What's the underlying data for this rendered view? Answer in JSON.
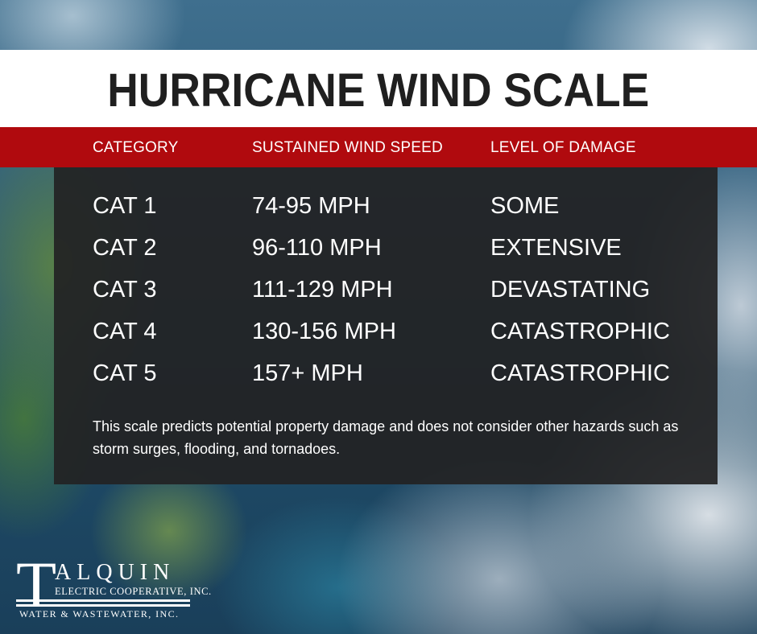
{
  "title": "HURRICANE WIND SCALE",
  "columns": [
    "CATEGORY",
    "SUSTAINED WIND SPEED",
    "LEVEL OF DAMAGE"
  ],
  "rows": [
    {
      "category": "CAT 1",
      "speed": "74-95 MPH",
      "damage": "SOME"
    },
    {
      "category": "CAT 2",
      "speed": "96-110 MPH",
      "damage": "EXTENSIVE"
    },
    {
      "category": "CAT 3",
      "speed": "111-129 MPH",
      "damage": "DEVASTATING"
    },
    {
      "category": "CAT 4",
      "speed": "130-156 MPH",
      "damage": "CATASTROPHIC"
    },
    {
      "category": "CAT 5",
      "speed": "157+ MPH",
      "damage": "CATASTROPHIC"
    }
  ],
  "note": "This scale predicts potential property damage and does not consider other hazards such as storm surges, flooding, and tornadoes.",
  "logo": {
    "initial": "T",
    "name": "ALQUIN",
    "line1": "ELECTRIC COOPERATIVE, INC.",
    "line2": "WATER & WASTEWATER, INC."
  },
  "colors": {
    "header_red": "#b00a0e",
    "panel": "#222224",
    "title_text": "#1f1f1f"
  }
}
